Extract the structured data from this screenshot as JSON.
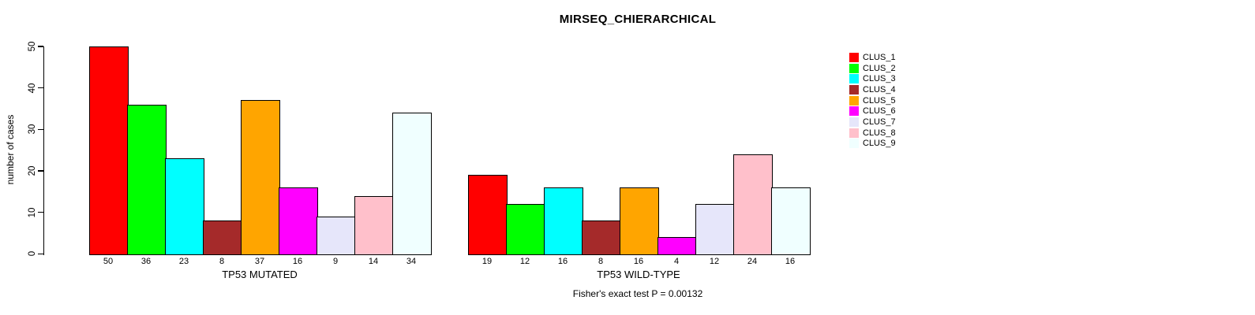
{
  "chart_data": {
    "type": "bar",
    "title": "MIRSEQ_CHIERARCHICAL",
    "ylabel": "number of cases",
    "ylim": [
      0,
      50
    ],
    "yticks": [
      0,
      10,
      20,
      30,
      40,
      50
    ],
    "grid": false,
    "legend_position": "top-right",
    "caption": "Fisher's exact test P = 0.00132",
    "clusters": [
      {
        "label": "CLUS_1",
        "color": "#FF0000"
      },
      {
        "label": "CLUS_2",
        "color": "#00FF00"
      },
      {
        "label": "CLUS_3",
        "color": "#00FFFF"
      },
      {
        "label": "CLUS_4",
        "color": "#A52A2A"
      },
      {
        "label": "CLUS_5",
        "color": "#FFA500"
      },
      {
        "label": "CLUS_6",
        "color": "#FF00FF"
      },
      {
        "label": "CLUS_7",
        "color": "#E6E6FA"
      },
      {
        "label": "CLUS_8",
        "color": "#FFC0CB"
      },
      {
        "label": "CLUS_9",
        "color": "#F0FFFF"
      }
    ],
    "groups": [
      {
        "label": "TP53 MUTATED",
        "values": [
          50,
          36,
          23,
          8,
          37,
          16,
          9,
          14,
          34
        ]
      },
      {
        "label": "TP53 WILD-TYPE",
        "values": [
          19,
          12,
          16,
          8,
          16,
          4,
          12,
          24,
          16
        ]
      }
    ]
  }
}
